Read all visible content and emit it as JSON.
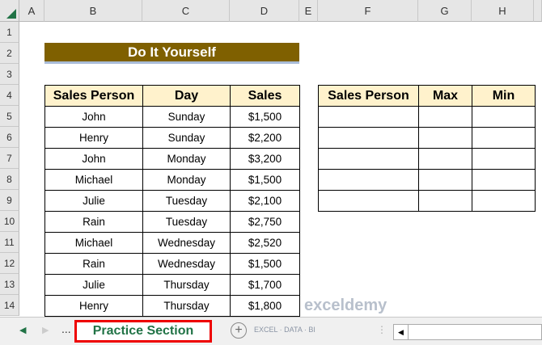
{
  "columns": [
    "A",
    "B",
    "C",
    "D",
    "E",
    "F",
    "G",
    "H"
  ],
  "rows": [
    "1",
    "2",
    "3",
    "4",
    "5",
    "6",
    "7",
    "8",
    "9",
    "10",
    "11",
    "12",
    "13",
    "14"
  ],
  "title": "Do It Yourself",
  "data_table": {
    "headers": [
      "Sales Person",
      "Day",
      "Sales"
    ],
    "rows": [
      [
        "John",
        "Sunday",
        "$1,500"
      ],
      [
        "Henry",
        "Sunday",
        "$2,200"
      ],
      [
        "John",
        "Monday",
        "$3,200"
      ],
      [
        "Michael",
        "Monday",
        "$1,500"
      ],
      [
        "Julie",
        "Tuesday",
        "$2,100"
      ],
      [
        "Rain",
        "Tuesday",
        "$2,750"
      ],
      [
        "Michael",
        "Wednesday",
        "$2,520"
      ],
      [
        "Rain",
        "Wednesday",
        "$1,500"
      ],
      [
        "Julie",
        "Thursday",
        "$1,700"
      ],
      [
        "Henry",
        "Thursday",
        "$1,800"
      ]
    ]
  },
  "result_table": {
    "headers": [
      "Sales Person",
      "Max",
      "Min"
    ]
  },
  "sheet_tab": "Practice Section",
  "ellipsis": "...",
  "watermark": {
    "name": "exceldemy",
    "tagline": "EXCEL · DATA · BI"
  }
}
